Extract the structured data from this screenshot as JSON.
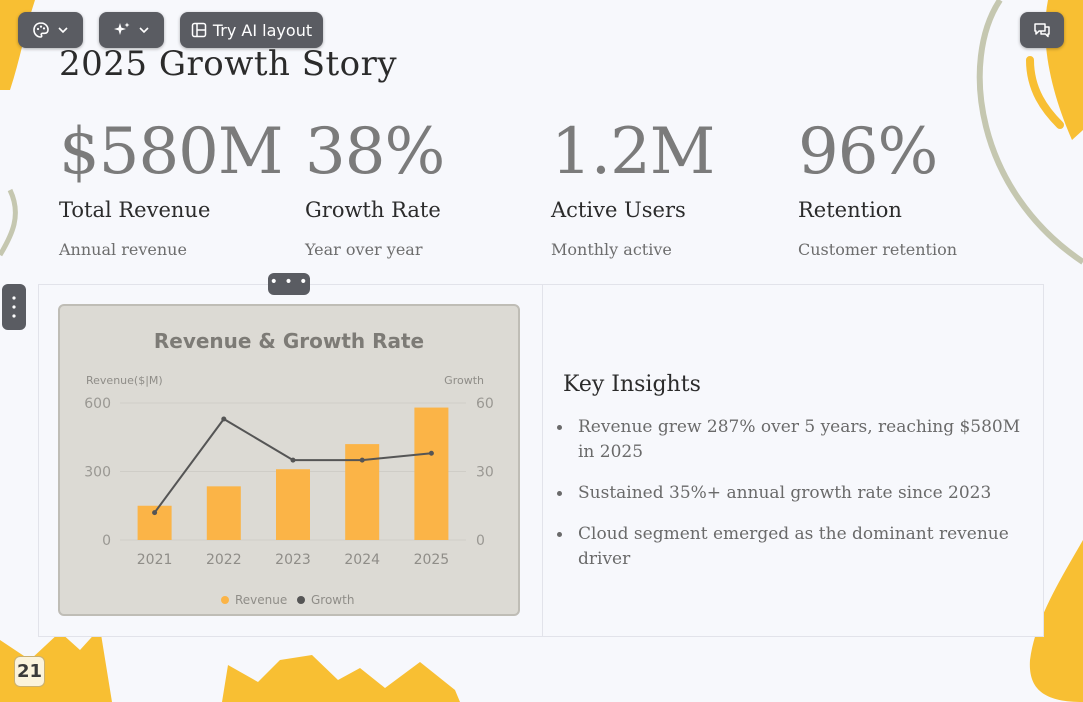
{
  "toolbar": {
    "ai_layout_label": "Try AI layout"
  },
  "slide": {
    "title": "2025 Growth Story",
    "page_number": "21",
    "stats": [
      {
        "value": "$580M",
        "label": "Total Revenue",
        "sub": "Annual revenue"
      },
      {
        "value": "38%",
        "label": "Growth Rate",
        "sub": "Year over year"
      },
      {
        "value": "1.2M",
        "label": "Active Users",
        "sub": "Monthly active"
      },
      {
        "value": "96%",
        "label": "Retention",
        "sub": "Customer retention"
      }
    ],
    "insights": {
      "heading": "Key Insights",
      "items": [
        "Revenue grew 287% over 5 years, reaching $580M in 2025",
        "Sustained 35%+ annual growth rate since 2023",
        "Cloud segment emerged as the dominant revenue driver"
      ]
    },
    "handle_label": "• • •"
  },
  "colors": {
    "bar": "#fbb447",
    "line": "#555555",
    "accent_yellow": "#f8bf33",
    "accent_olive": "#c5c7b0"
  },
  "chart_data": {
    "type": "bar",
    "title": "Revenue & Growth Rate",
    "categories": [
      "2021",
      "2022",
      "2023",
      "2024",
      "2025"
    ],
    "series": [
      {
        "name": "Revenue",
        "type": "bar",
        "axis": "left",
        "values": [
          150,
          235,
          310,
          420,
          580
        ]
      },
      {
        "name": "Growth",
        "type": "line",
        "axis": "right",
        "values": [
          12,
          53,
          35,
          35,
          38
        ]
      }
    ],
    "ylabel": "Revenue($|M)",
    "y2label": "Growth",
    "ylim": [
      0,
      600
    ],
    "y2lim": [
      0,
      60
    ],
    "yticks": [
      "0",
      "300",
      "600"
    ],
    "y2ticks": [
      "0",
      "30",
      "60"
    ],
    "legend": "bottom-center",
    "grid": true
  }
}
